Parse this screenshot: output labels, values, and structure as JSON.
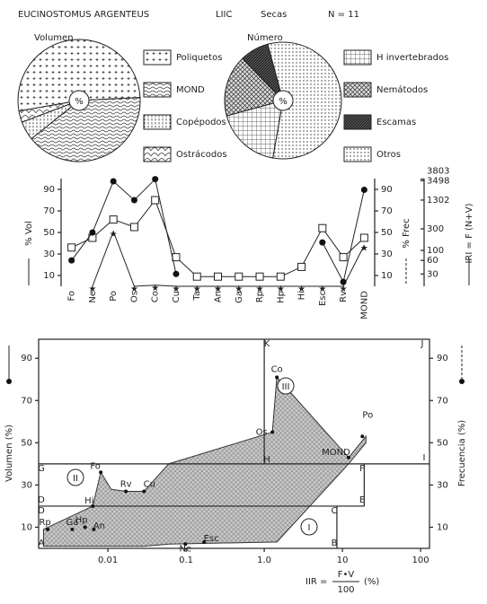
{
  "header": {
    "species": "EUCINOSTOMUS ARGENTEUS",
    "site": "LIIC",
    "season": "Secas",
    "n": "N = 11"
  },
  "chart_data": [
    {
      "type": "pie",
      "title": "Volumen",
      "center_label": "%",
      "categories": [
        "Poliquetos",
        "MOND",
        "Copépodos",
        "Ostrácodos"
      ],
      "values": [
        52,
        40,
        5,
        3
      ],
      "patterns": [
        "crosses",
        "waves",
        "vdots",
        "scales"
      ]
    },
    {
      "type": "pie",
      "title": "Número",
      "center_label": "%",
      "categories": [
        "H invertebrados",
        "Nemátodos",
        "Escamas",
        "Otros"
      ],
      "values": [
        18,
        17,
        8,
        57
      ],
      "patterns": [
        "grid",
        "xhatch",
        "dark",
        "dots"
      ]
    },
    {
      "type": "line",
      "categories": [
        "Fo",
        "Ne",
        "Po",
        "Os",
        "Co",
        "Cu",
        "Ta",
        "An",
        "Ga",
        "Rp",
        "Hp",
        "Hi",
        "Esc",
        "Rv",
        "MOND"
      ],
      "series": [
        {
          "name": "% Vol",
          "marker": "star",
          "values": [
            null,
            0,
            51,
            0,
            1,
            0,
            0,
            0,
            0,
            0,
            0,
            0,
            0,
            0,
            38
          ]
        },
        {
          "name": "% Frec",
          "marker": "square",
          "axis": "y2",
          "values": [
            36,
            45,
            62,
            55,
            80,
            27,
            9,
            9,
            9,
            9,
            9,
            18,
            54,
            27,
            45
          ]
        },
        {
          "name": "IRI = F (N+V)",
          "marker": "circle",
          "axis": "y3",
          "values": [
            60,
            250,
            3400,
            1300,
            3800,
            30,
            null,
            null,
            null,
            null,
            null,
            null,
            150,
            20,
            2200
          ]
        }
      ],
      "ylim": [
        0,
        100
      ],
      "yticks": [
        10,
        30,
        50,
        70,
        90
      ],
      "y2lim": [
        0,
        100
      ],
      "y2ticks": [
        10,
        30,
        50,
        70,
        90
      ],
      "y3lim": [
        16,
        3900
      ],
      "y3ticks": [
        30,
        60,
        100,
        300,
        1302,
        3498,
        3803
      ],
      "y3log": true
    },
    {
      "type": "scatter",
      "x_label": [
        "IIR =",
        "F•V",
        "100",
        "(%)"
      ],
      "y_label": "Volumen (%)",
      "y2_label": "Frecuencia (%)",
      "point_labels": [
        "Rp",
        "Ga",
        "Hp",
        "An",
        "Hi",
        "Fo",
        "Rv",
        "Cu",
        "Ne",
        "Esc",
        "Os",
        "Co",
        "MOND",
        "Po"
      ],
      "x": [
        0.0017,
        0.0035,
        0.0051,
        0.0066,
        0.0064,
        0.0081,
        0.017,
        0.029,
        0.098,
        0.17,
        1.27,
        1.45,
        12,
        18
      ],
      "values": [
        9,
        9,
        10,
        9,
        20,
        36,
        27,
        27,
        2,
        3,
        55,
        81,
        43,
        53
      ],
      "area": {
        "x": [
          0.0015,
          0.0064,
          0.0081,
          0.011,
          0.017,
          0.029,
          0.06,
          1.27,
          1.45,
          12,
          20
        ],
        "upper": [
          9,
          20,
          36,
          28,
          27,
          27,
          40,
          55,
          81,
          43,
          53
        ],
        "lower": [
          1,
          1,
          1,
          1,
          1,
          1,
          2,
          3,
          3,
          40,
          50
        ]
      },
      "boundaries": [
        [
          1,
          40,
          1,
          99
        ],
        [
          0.0013,
          40,
          130,
          40
        ],
        [
          0.0013,
          20,
          19,
          20
        ],
        [
          19,
          20,
          19,
          40
        ],
        [
          8.5,
          0,
          8.5,
          20
        ]
      ],
      "corner_labels": [
        "A",
        "B",
        "C",
        "D",
        "D",
        "E",
        "F",
        "G",
        "H",
        "I",
        "J",
        "K"
      ],
      "zone_labels": [
        "I",
        "II",
        "III"
      ],
      "xlim": [
        0.0013,
        130
      ],
      "xlog": true,
      "xticks": [
        0.01,
        0.1,
        {
          "value": 1,
          "label": "1.0"
        },
        10,
        100
      ],
      "ylim": [
        0,
        99
      ],
      "yticks": [
        10,
        30,
        50,
        70,
        90
      ],
      "y2lim": [
        0,
        99
      ],
      "y2ticks": [
        10,
        30,
        50,
        70,
        90
      ]
    }
  ]
}
